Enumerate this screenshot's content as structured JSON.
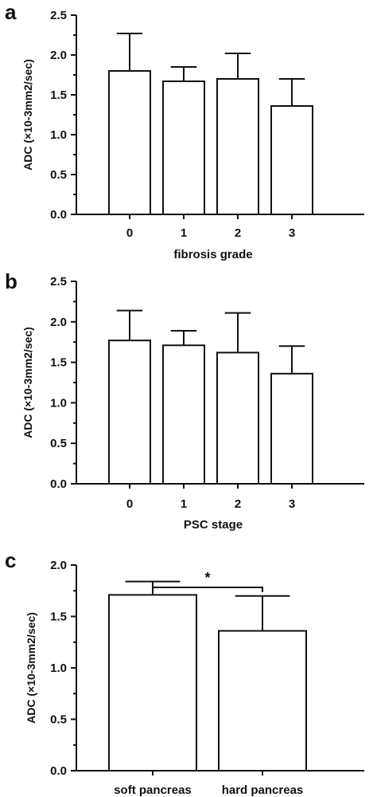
{
  "chart_data": [
    {
      "type": "bar",
      "panel_label": "a",
      "categories": [
        "0",
        "1",
        "2",
        "3"
      ],
      "values": [
        1.8,
        1.67,
        1.7,
        1.36
      ],
      "error_upper": [
        2.27,
        1.85,
        2.02,
        1.7
      ],
      "xlabel": "fibrosis grade",
      "ylabel": "ADC (×10-3mm2/sec)",
      "ylim": [
        0,
        2.5
      ],
      "yticks": [
        "0.0",
        "0.5",
        "1.0",
        "1.5",
        "2.0",
        "2.5"
      ]
    },
    {
      "type": "bar",
      "panel_label": "b",
      "categories": [
        "0",
        "1",
        "2",
        "3"
      ],
      "values": [
        1.77,
        1.71,
        1.62,
        1.36
      ],
      "error_upper": [
        2.14,
        1.89,
        2.11,
        1.7
      ],
      "xlabel": "PSC stage",
      "ylabel": "ADC (×10-3mm2/sec)",
      "ylim": [
        0,
        2.5
      ],
      "yticks": [
        "0.0",
        "0.5",
        "1.0",
        "1.5",
        "2.0",
        "2.5"
      ]
    },
    {
      "type": "bar",
      "panel_label": "c",
      "categories": [
        "soft pancreas",
        "hard pancreas"
      ],
      "values": [
        1.71,
        1.36
      ],
      "error_upper": [
        1.84,
        1.7
      ],
      "xlabel": "",
      "ylabel": "ADC (×10-3mm2/sec)",
      "ylim": [
        0,
        2.0
      ],
      "yticks": [
        "0.0",
        "0.5",
        "1.0",
        "1.5",
        "2.0"
      ],
      "significance": "*"
    }
  ]
}
